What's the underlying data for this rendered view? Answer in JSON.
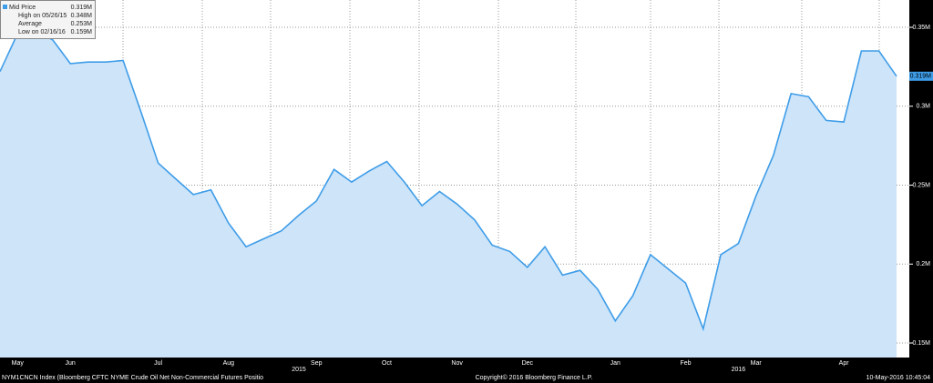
{
  "chart_data": {
    "type": "area",
    "stats": [
      [
        "Mid Price",
        "0.319M"
      ],
      [
        "High on 05/26/15",
        "0.348M"
      ],
      [
        "Average",
        "0.253M"
      ],
      [
        "Low on 02/16/16",
        "0.159M"
      ]
    ],
    "categories": [
      null,
      "May",
      null,
      null,
      "Jun",
      null,
      null,
      null,
      null,
      "Jul",
      null,
      null,
      null,
      "Aug",
      null,
      null,
      null,
      null,
      "Sep",
      null,
      null,
      null,
      "Oct",
      null,
      null,
      null,
      "Nov",
      null,
      null,
      null,
      "Dec",
      null,
      null,
      null,
      null,
      "Jan",
      null,
      null,
      null,
      "Feb",
      null,
      null,
      null,
      "Mar",
      null,
      null,
      null,
      null,
      "Apr",
      null,
      null,
      null
    ],
    "category_groups": [
      null,
      null,
      null,
      null,
      null,
      null,
      null,
      null,
      null,
      null,
      null,
      null,
      null,
      null,
      null,
      null,
      null,
      "2015",
      null,
      null,
      null,
      null,
      null,
      null,
      null,
      null,
      null,
      null,
      null,
      null,
      null,
      null,
      null,
      null,
      null,
      null,
      null,
      null,
      null,
      null,
      null,
      null,
      "2016",
      null,
      null,
      null,
      null,
      null,
      null,
      null,
      null,
      null
    ],
    "series": [
      {
        "name": "Mid Price",
        "color": "#3f9de8",
        "fill": "#cde4f9",
        "values": [
          0.322,
          0.346,
          0.348,
          0.342,
          0.327,
          0.328,
          0.328,
          0.329,
          0.297,
          0.264,
          0.254,
          0.244,
          0.247,
          0.226,
          0.211,
          0.216,
          0.221,
          0.231,
          0.24,
          0.26,
          0.252,
          0.259,
          0.265,
          0.252,
          0.237,
          0.246,
          0.238,
          0.228,
          0.212,
          0.208,
          0.198,
          0.211,
          0.193,
          0.196,
          0.184,
          0.164,
          0.18,
          0.206,
          0.197,
          0.188,
          0.159,
          0.206,
          0.213,
          0.243,
          0.269,
          0.308,
          0.306,
          0.291,
          0.29,
          0.335,
          0.335,
          0.319
        ]
      }
    ],
    "last_value": {
      "value": 0.319,
      "label": "0.319M"
    },
    "ylim": [
      0.1408,
      0.3673
    ],
    "yticks": [
      {
        "value": 0.15,
        "label": "0.15M"
      },
      {
        "value": 0.2,
        "label": "0.2M"
      },
      {
        "value": 0.25,
        "label": "0.25M"
      },
      {
        "value": 0.3,
        "label": "0.3M"
      },
      {
        "value": 0.35,
        "label": "0.35M"
      }
    ],
    "grid": true,
    "footer": {
      "left": "NYM1CNCN Index (Bloomberg CFTC NYME Crude Oil Net Non-Commercial Futures Positio",
      "center": "Copyright© 2016 Bloomberg Finance L.P.",
      "right": "10-May-2016 10:45:04"
    }
  }
}
